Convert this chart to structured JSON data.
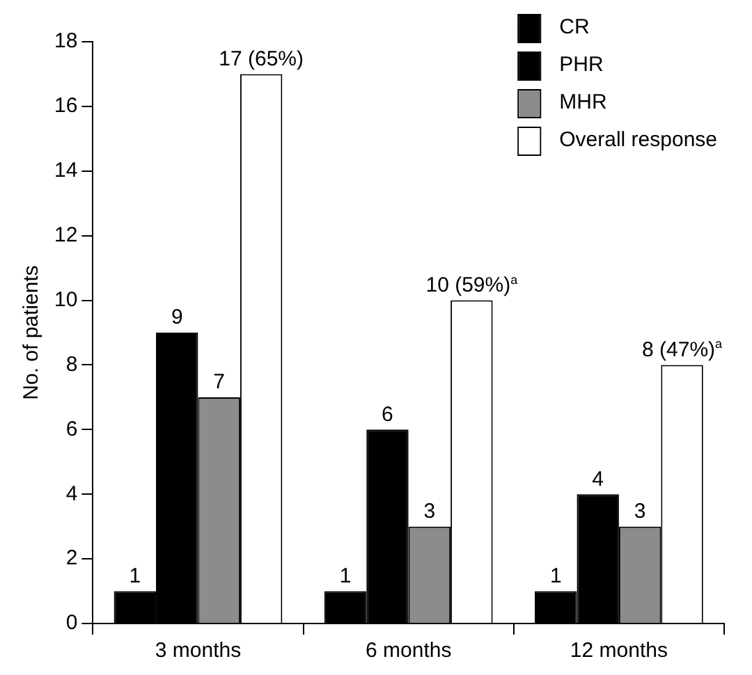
{
  "chart_data": {
    "type": "bar",
    "ylabel": "No. of patients",
    "categories": [
      "3 months",
      "6 months",
      "12 months"
    ],
    "series": [
      {
        "name": "CR",
        "color": "#000000",
        "values": [
          1,
          1,
          1
        ],
        "value_labels": [
          "1",
          "1",
          "1"
        ]
      },
      {
        "name": "PHR",
        "color": "#000000",
        "values": [
          9,
          6,
          4
        ],
        "value_labels": [
          "9",
          "6",
          "4"
        ]
      },
      {
        "name": "MHR",
        "color": "#8c8c8c",
        "values": [
          7,
          3,
          3
        ],
        "value_labels": [
          "7",
          "3",
          "3"
        ]
      },
      {
        "name": "Overall response",
        "color": "#ffffff",
        "values": [
          17,
          10,
          8
        ],
        "value_labels": [
          "17 (65%)",
          "10 (59%)$^{a}$",
          "8 (47%)$^{a}$"
        ]
      }
    ],
    "ylim": [
      0,
      18
    ],
    "yticks": [
      0,
      2,
      4,
      6,
      8,
      10,
      12,
      14,
      16,
      18
    ],
    "grid": false,
    "legend": "top right"
  }
}
